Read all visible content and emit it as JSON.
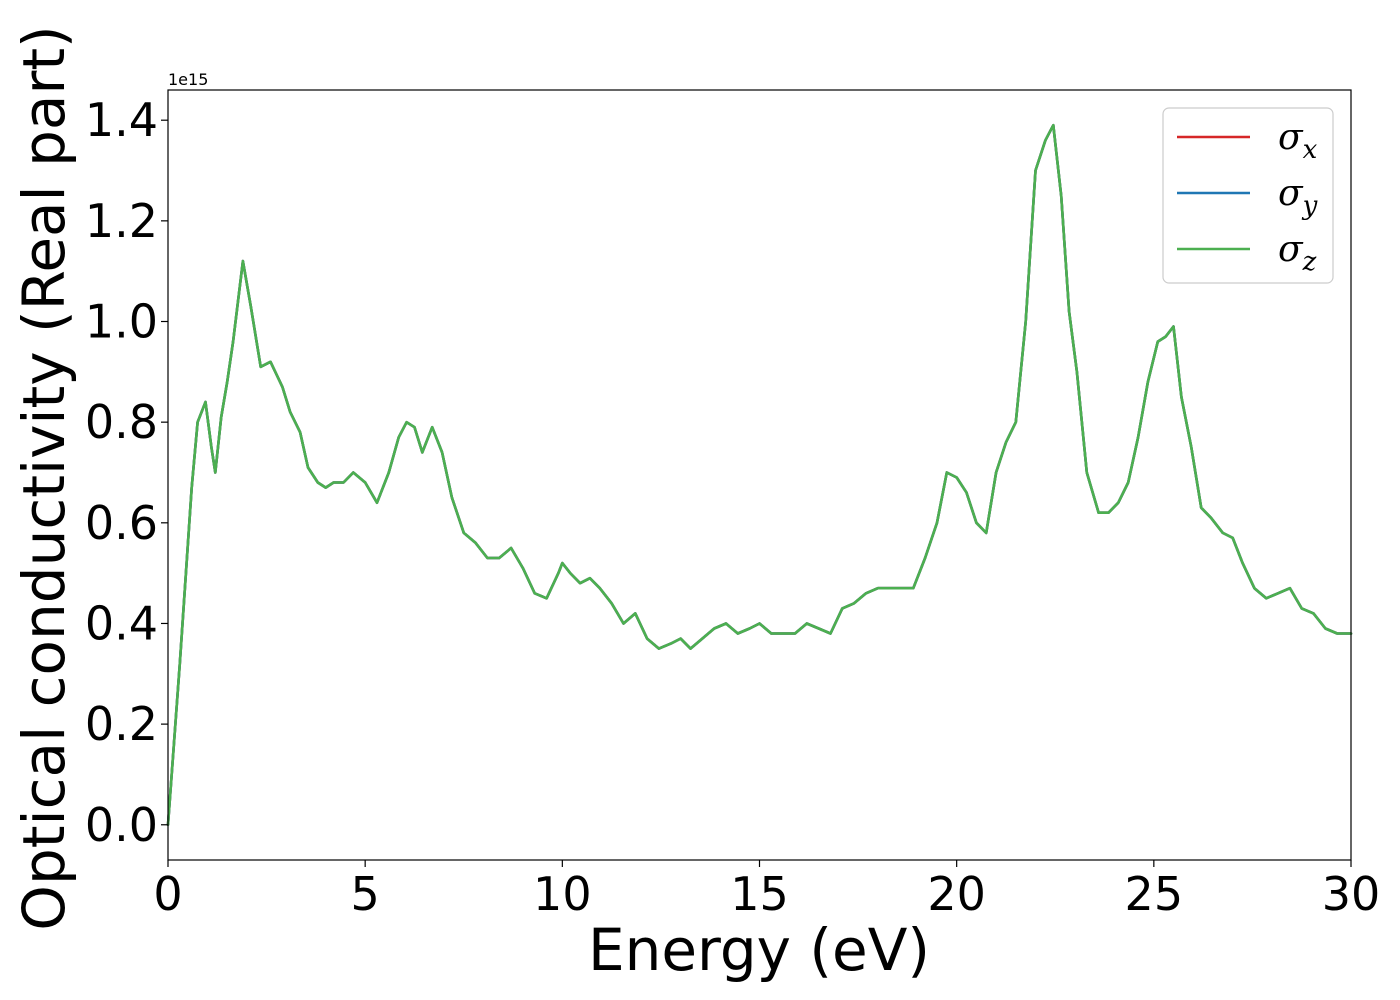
{
  "chart_data": {
    "type": "line",
    "xlabel": "Energy (eV)",
    "ylabel": "Optical conductivity (Real part)",
    "y_offset_label": "1e15",
    "xlim": [
      0,
      30
    ],
    "ylim": [
      -0.07,
      1.46
    ],
    "xticks": [
      0,
      5,
      10,
      15,
      20,
      25,
      30
    ],
    "xtick_labels": [
      "0",
      "5",
      "10",
      "15",
      "20",
      "25",
      "30"
    ],
    "yticks": [
      0.0,
      0.2,
      0.4,
      0.6,
      0.8,
      1.0,
      1.2,
      1.4
    ],
    "ytick_labels": [
      "0.0",
      "0.2",
      "0.4",
      "0.6",
      "0.8",
      "1.0",
      "1.2",
      "1.4"
    ],
    "grid": false,
    "legend_position": "top-right",
    "legend": [
      {
        "symbol": "σ",
        "sub": "x",
        "color": "#d62728"
      },
      {
        "symbol": "σ",
        "sub": "y",
        "color": "#1f77b4"
      },
      {
        "symbol": "σ",
        "sub": "z",
        "color": "#4caf50"
      }
    ],
    "x": [
      0.0,
      0.3,
      0.6,
      0.75,
      0.95,
      1.1,
      1.2,
      1.35,
      1.5,
      1.65,
      1.9,
      2.1,
      2.35,
      2.6,
      2.9,
      3.1,
      3.35,
      3.55,
      3.8,
      4.0,
      4.2,
      4.45,
      4.7,
      5.0,
      5.3,
      5.6,
      5.85,
      6.05,
      6.25,
      6.45,
      6.7,
      6.95,
      7.2,
      7.5,
      7.8,
      8.1,
      8.4,
      8.7,
      9.0,
      9.3,
      9.6,
      9.9,
      10.0,
      10.2,
      10.45,
      10.7,
      10.95,
      11.25,
      11.55,
      11.85,
      12.15,
      12.45,
      12.75,
      13.0,
      13.25,
      13.55,
      13.85,
      14.15,
      14.45,
      14.75,
      15.0,
      15.3,
      15.6,
      15.9,
      16.2,
      16.5,
      16.8,
      17.1,
      17.4,
      17.7,
      18.0,
      18.3,
      18.6,
      18.9,
      19.2,
      19.5,
      19.75,
      20.0,
      20.25,
      20.5,
      20.75,
      21.0,
      21.25,
      21.5,
      21.75,
      22.0,
      22.25,
      22.45,
      22.65,
      22.85,
      23.05,
      23.3,
      23.6,
      23.85,
      24.1,
      24.35,
      24.6,
      24.85,
      25.1,
      25.3,
      25.5,
      25.7,
      25.95,
      26.2,
      26.45,
      26.75,
      27.0,
      27.25,
      27.55,
      27.85,
      28.15,
      28.45,
      28.75,
      29.05,
      29.35,
      29.65,
      30.0
    ],
    "series": [
      {
        "name": "σx",
        "values": [
          0.0,
          0.32,
          0.67,
          0.8,
          0.84,
          0.75,
          0.7,
          0.81,
          0.88,
          0.96,
          1.12,
          1.03,
          0.91,
          0.92,
          0.87,
          0.82,
          0.78,
          0.71,
          0.68,
          0.67,
          0.68,
          0.68,
          0.7,
          0.68,
          0.64,
          0.7,
          0.77,
          0.8,
          0.79,
          0.74,
          0.79,
          0.74,
          0.65,
          0.58,
          0.56,
          0.53,
          0.53,
          0.55,
          0.51,
          0.46,
          0.45,
          0.5,
          0.52,
          0.5,
          0.48,
          0.49,
          0.47,
          0.44,
          0.4,
          0.42,
          0.37,
          0.35,
          0.36,
          0.37,
          0.35,
          0.37,
          0.39,
          0.4,
          0.38,
          0.39,
          0.4,
          0.38,
          0.38,
          0.38,
          0.4,
          0.39,
          0.38,
          0.43,
          0.44,
          0.46,
          0.47,
          0.47,
          0.47,
          0.47,
          0.53,
          0.6,
          0.7,
          0.69,
          0.66,
          0.6,
          0.58,
          0.7,
          0.76,
          0.8,
          1.0,
          1.3,
          1.36,
          1.39,
          1.25,
          1.02,
          0.9,
          0.7,
          0.62,
          0.62,
          0.64,
          0.68,
          0.77,
          0.88,
          0.96,
          0.97,
          0.99,
          0.85,
          0.75,
          0.63,
          0.61,
          0.58,
          0.57,
          0.52,
          0.47,
          0.45,
          0.46,
          0.47,
          0.43,
          0.42,
          0.39,
          0.38,
          0.38
        ]
      },
      {
        "name": "σy",
        "values": [
          0.0,
          0.32,
          0.67,
          0.8,
          0.84,
          0.75,
          0.7,
          0.81,
          0.88,
          0.96,
          1.12,
          1.03,
          0.91,
          0.92,
          0.87,
          0.82,
          0.78,
          0.71,
          0.68,
          0.67,
          0.68,
          0.68,
          0.7,
          0.68,
          0.64,
          0.7,
          0.77,
          0.8,
          0.79,
          0.74,
          0.79,
          0.74,
          0.65,
          0.58,
          0.56,
          0.53,
          0.53,
          0.55,
          0.51,
          0.46,
          0.45,
          0.5,
          0.52,
          0.5,
          0.48,
          0.49,
          0.47,
          0.44,
          0.4,
          0.42,
          0.37,
          0.35,
          0.36,
          0.37,
          0.35,
          0.37,
          0.39,
          0.4,
          0.38,
          0.39,
          0.4,
          0.38,
          0.38,
          0.38,
          0.4,
          0.39,
          0.38,
          0.43,
          0.44,
          0.46,
          0.47,
          0.47,
          0.47,
          0.47,
          0.53,
          0.6,
          0.7,
          0.69,
          0.66,
          0.6,
          0.58,
          0.7,
          0.76,
          0.8,
          1.0,
          1.3,
          1.36,
          1.39,
          1.25,
          1.02,
          0.9,
          0.7,
          0.62,
          0.62,
          0.64,
          0.68,
          0.77,
          0.88,
          0.96,
          0.97,
          0.99,
          0.85,
          0.75,
          0.63,
          0.61,
          0.58,
          0.57,
          0.52,
          0.47,
          0.45,
          0.46,
          0.47,
          0.43,
          0.42,
          0.39,
          0.38,
          0.38
        ]
      },
      {
        "name": "σz",
        "values": [
          0.0,
          0.32,
          0.67,
          0.8,
          0.84,
          0.75,
          0.7,
          0.81,
          0.88,
          0.96,
          1.12,
          1.03,
          0.91,
          0.92,
          0.87,
          0.82,
          0.78,
          0.71,
          0.68,
          0.67,
          0.68,
          0.68,
          0.7,
          0.68,
          0.64,
          0.7,
          0.77,
          0.8,
          0.79,
          0.74,
          0.79,
          0.74,
          0.65,
          0.58,
          0.56,
          0.53,
          0.53,
          0.55,
          0.51,
          0.46,
          0.45,
          0.5,
          0.52,
          0.5,
          0.48,
          0.49,
          0.47,
          0.44,
          0.4,
          0.42,
          0.37,
          0.35,
          0.36,
          0.37,
          0.35,
          0.37,
          0.39,
          0.4,
          0.38,
          0.39,
          0.4,
          0.38,
          0.38,
          0.38,
          0.4,
          0.39,
          0.38,
          0.43,
          0.44,
          0.46,
          0.47,
          0.47,
          0.47,
          0.47,
          0.53,
          0.6,
          0.7,
          0.69,
          0.66,
          0.6,
          0.58,
          0.7,
          0.76,
          0.8,
          1.0,
          1.3,
          1.36,
          1.39,
          1.25,
          1.02,
          0.9,
          0.7,
          0.62,
          0.62,
          0.64,
          0.68,
          0.77,
          0.88,
          0.96,
          0.97,
          0.99,
          0.85,
          0.75,
          0.63,
          0.61,
          0.58,
          0.57,
          0.52,
          0.47,
          0.45,
          0.46,
          0.47,
          0.43,
          0.42,
          0.39,
          0.38,
          0.38
        ]
      }
    ]
  }
}
